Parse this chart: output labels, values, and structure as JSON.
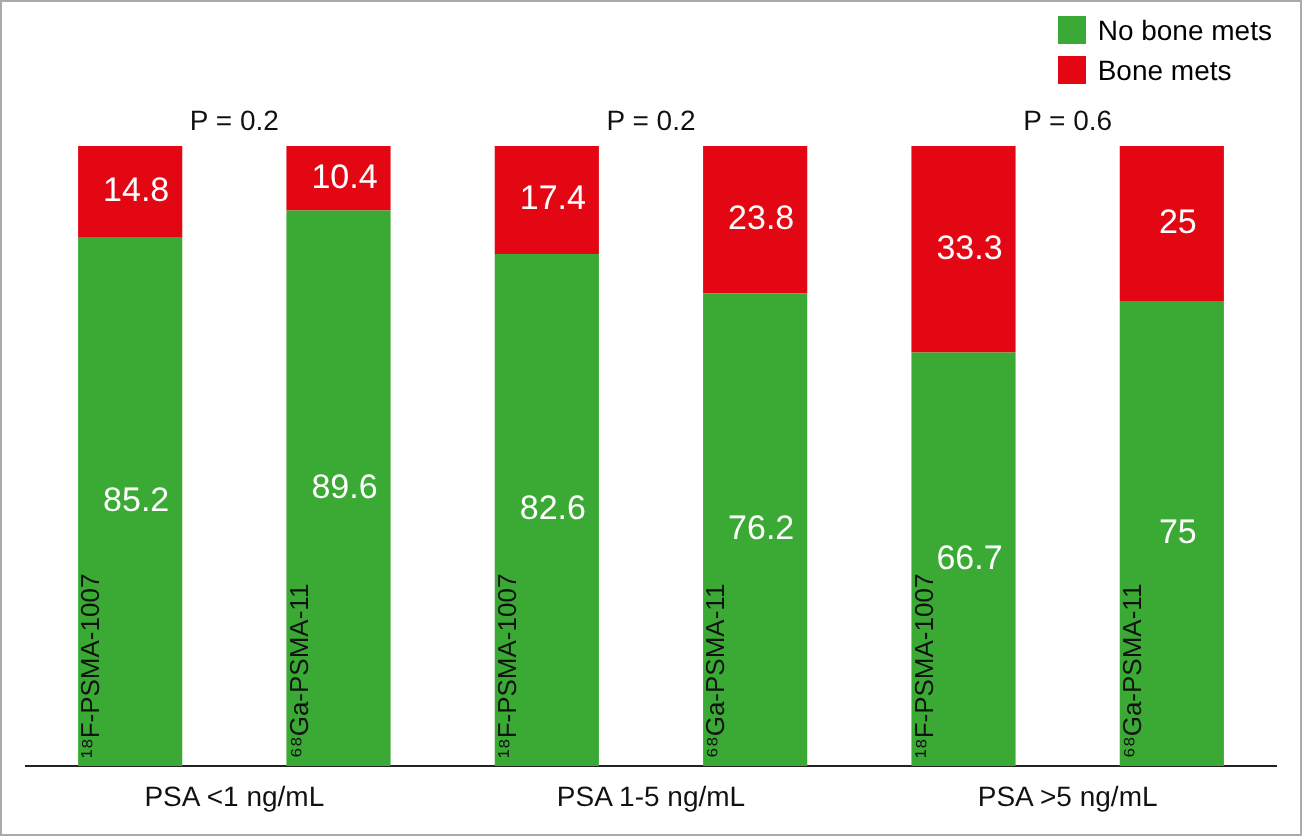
{
  "chart_data": {
    "type": "bar",
    "stacked": true,
    "data_labels": true,
    "legend": "top right",
    "grid": false,
    "tick_labels": "x",
    "categories": [
      "¹⁸F-PSMA-1007",
      "⁶⁸Ga-PSMA-11",
      "¹⁸F-PSMA-1007",
      "⁶⁸Ga-PSMA-11",
      "¹⁸F-PSMA-1007",
      "⁶⁸Ga-PSMA-11"
    ],
    "ylim": [
      0,
      100
    ],
    "series": [
      {
        "name": "No bone mets",
        "color": "#3aaa35",
        "values": [
          85.2,
          89.6,
          82.6,
          76.2,
          66.7,
          75
        ]
      },
      {
        "name": "Bone mets",
        "color": "#e30613",
        "values": [
          14.8,
          10.4,
          17.4,
          23.8,
          33.3,
          25
        ]
      }
    ],
    "annotations": [
      "P = 0.2",
      "P = 0.2",
      "P = 0.6",
      "PSA <1 ng/mL",
      "PSA 1-5 ng/mL",
      "PSA >5 ng/mL"
    ]
  }
}
